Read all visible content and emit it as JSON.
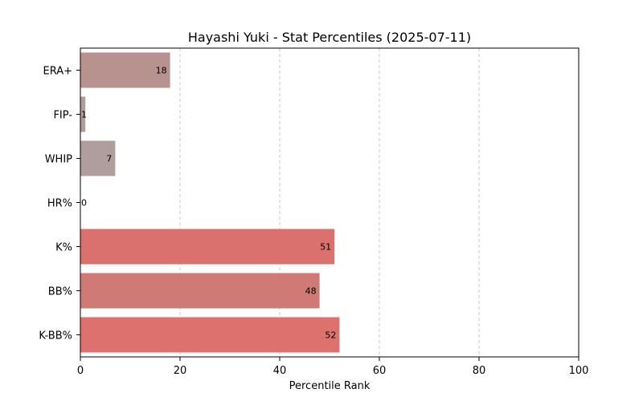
{
  "chart_data": {
    "type": "bar",
    "orientation": "horizontal",
    "title": "Hayashi Yuki - Stat Percentiles (2025-07-11)",
    "xlabel": "Percentile Rank",
    "ylabel": "",
    "xlim": [
      0,
      100
    ],
    "xticks": [
      0,
      20,
      40,
      60,
      80,
      100
    ],
    "grid": "x-dashed",
    "categories": [
      "ERA+",
      "FIP-",
      "WHIP",
      "HR%",
      "K%",
      "BB%",
      "K-BB%"
    ],
    "values": [
      18,
      1,
      7,
      0,
      51,
      48,
      52
    ],
    "colors": [
      "#b8928f",
      "#b09d9d",
      "#b09d9d",
      "#b0a0a0",
      "#db716e",
      "#d07a76",
      "#dc716e"
    ],
    "data_labels": [
      "18",
      "1",
      "7",
      "0",
      "51",
      "48",
      "52"
    ]
  }
}
